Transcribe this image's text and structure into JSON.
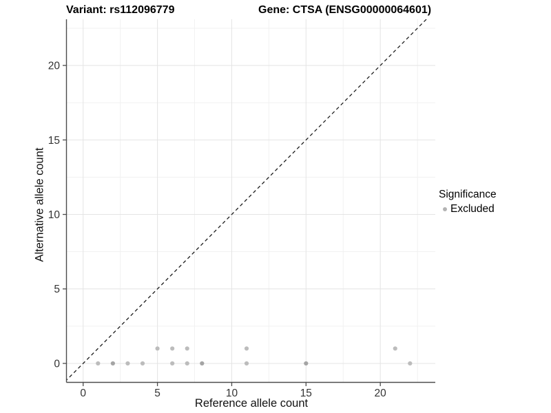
{
  "chart_data": {
    "type": "scatter",
    "title_left": "Variant: rs112096779",
    "title_right": "Gene: CTSA (ENSG00000064601)",
    "xlabel": "Reference allele count",
    "ylabel": "Alternative allele count",
    "xlim": [
      -1.1,
      23.7
    ],
    "ylim": [
      -1.25,
      23.1
    ],
    "xticks": [
      0,
      5,
      10,
      15,
      20
    ],
    "yticks": [
      0,
      5,
      10,
      15,
      20
    ],
    "minor_gridlines_x": [
      2.5,
      7.5,
      12.5,
      17.5,
      22.5
    ],
    "minor_gridlines_y": [
      2.5,
      7.5,
      12.5,
      17.5,
      22.5
    ],
    "grid": true,
    "identity_line": {
      "equation": "y = x",
      "style": "dashed",
      "color": "#1c1c1c"
    },
    "series": [
      {
        "name": "Excluded",
        "color": "#bcbcbc",
        "overplot_color": "#a4a4a4",
        "points": [
          [
            1,
            0
          ],
          [
            2,
            0
          ],
          [
            3,
            0
          ],
          [
            4,
            0
          ],
          [
            6,
            0
          ],
          [
            7,
            0
          ],
          [
            8,
            0
          ],
          [
            11,
            0
          ],
          [
            15,
            0
          ],
          [
            22,
            0
          ],
          [
            5,
            1
          ],
          [
            6,
            1
          ],
          [
            7,
            1
          ],
          [
            11,
            1
          ],
          [
            21,
            1
          ]
        ],
        "overplotted_points": [
          [
            2,
            0
          ],
          [
            8,
            0
          ],
          [
            15,
            0
          ]
        ]
      }
    ],
    "legend": {
      "title": "Significance",
      "position": "right",
      "items": [
        {
          "label": "Excluded",
          "color": "#b3b3b3"
        }
      ]
    },
    "colors": {
      "axis_line": "#4b4b4b",
      "tick_label": "#333333",
      "grid_major": "#e4e4e4",
      "grid_minor": "#f1f1f1",
      "background": "#ffffff"
    }
  }
}
